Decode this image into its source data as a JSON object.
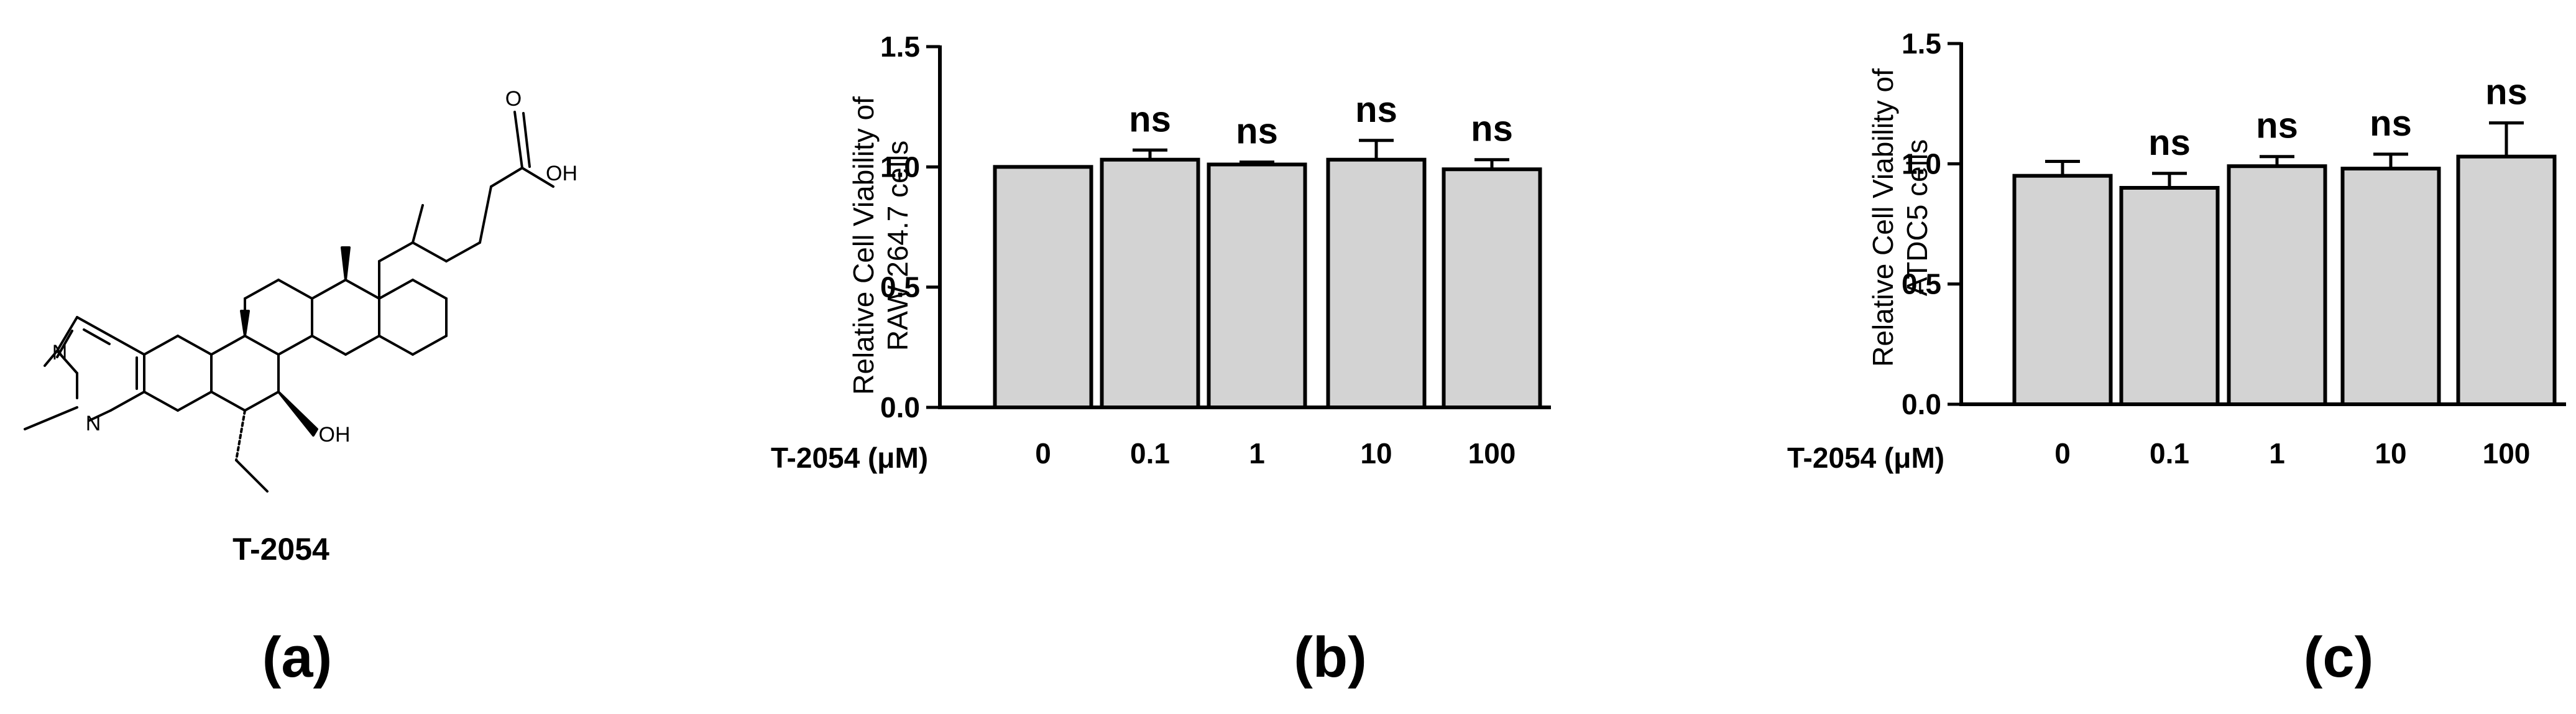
{
  "structure": {
    "compound_label": "T-2054",
    "atom_labels": {
      "n1": "N",
      "n2": "N",
      "oh": "OH",
      "o": "O",
      "oh_acid": "OH"
    }
  },
  "panel_labels": {
    "a": "(a)",
    "b": "(b)",
    "c": "(c)"
  },
  "colors": {
    "bar_fill": "#d3d3d3",
    "bar_stroke": "#000000",
    "text": "#000000"
  },
  "chart_data": [
    {
      "type": "bar",
      "ylabel": [
        "Relative Cell  Viability of",
        "RAW 264.7 cells"
      ],
      "xlabel": "T-2054 (μM)",
      "categories": [
        "0",
        "0.1",
        "1",
        "10",
        "100"
      ],
      "values": [
        1.0,
        1.03,
        1.01,
        1.03,
        0.99
      ],
      "error": [
        0.0,
        0.04,
        0.01,
        0.08,
        0.04
      ],
      "annotations": [
        "",
        "ns",
        "ns",
        "ns",
        "ns"
      ],
      "ylim": [
        0,
        1.5
      ],
      "yticks": [
        "0.0",
        "0.5",
        "1.0",
        "1.5"
      ],
      "grid": false
    },
    {
      "type": "bar",
      "ylabel": [
        "Relative Cell  Viability of",
        "ATDC5 cells"
      ],
      "xlabel": "T-2054 (μM)",
      "categories": [
        "0",
        "0.1",
        "1",
        "10",
        "100"
      ],
      "values": [
        0.95,
        0.9,
        0.99,
        0.98,
        1.03
      ],
      "error": [
        0.06,
        0.06,
        0.04,
        0.06,
        0.14
      ],
      "annotations": [
        "",
        "ns",
        "ns",
        "ns",
        "ns"
      ],
      "ylim": [
        0,
        1.5
      ],
      "yticks": [
        "0.0",
        "0.5",
        "1.0",
        "1.5"
      ],
      "grid": false
    }
  ]
}
